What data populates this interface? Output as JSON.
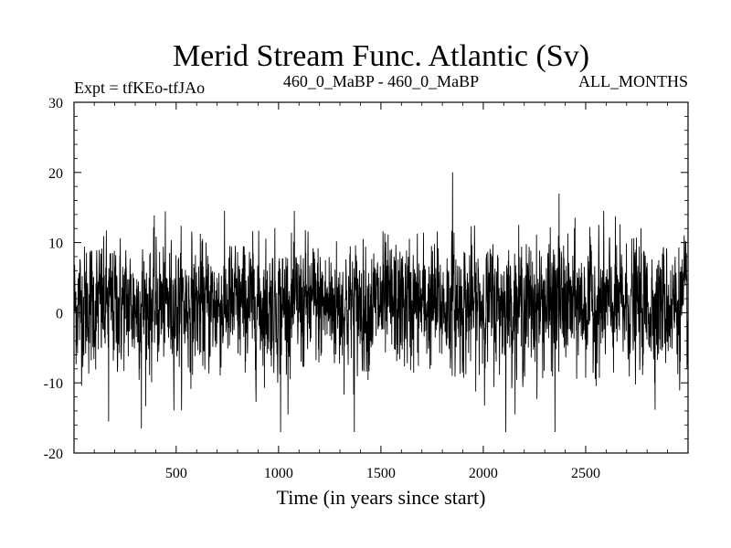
{
  "chart_data": {
    "type": "line",
    "title": "Merid Stream Func. Atlantic (Sv)",
    "subtitle_left": "Expt = tfKEo-tfJAo",
    "subtitle_center": "460_0_MaBP - 460_0_MaBP",
    "subtitle_right": "ALL_MONTHS",
    "xlabel": "Time (in years since start)",
    "ylabel": "",
    "xlim": [
      1,
      3000
    ],
    "ylim": [
      -20,
      30
    ],
    "xticks": [
      500,
      1000,
      1500,
      2000,
      2500
    ],
    "yticks": [
      -20,
      -10,
      0,
      10,
      20,
      30
    ],
    "grid": false,
    "series": [
      {
        "color": "#000000",
        "description_of_signal": "noisy annual series centered near 0 Sv, typical range about -10 to +12",
        "key_points": [
          {
            "x": 1,
            "y": 0
          },
          {
            "x": 170,
            "y": -15.5
          },
          {
            "x": 330,
            "y": -16.5
          },
          {
            "x": 1010,
            "y": -17
          },
          {
            "x": 1370,
            "y": -17
          },
          {
            "x": 1850,
            "y": 20
          },
          {
            "x": 2110,
            "y": -17
          },
          {
            "x": 2350,
            "y": -17
          },
          {
            "x": 2370,
            "y": 17
          },
          {
            "x": 3000,
            "y": 0
          }
        ]
      }
    ]
  }
}
